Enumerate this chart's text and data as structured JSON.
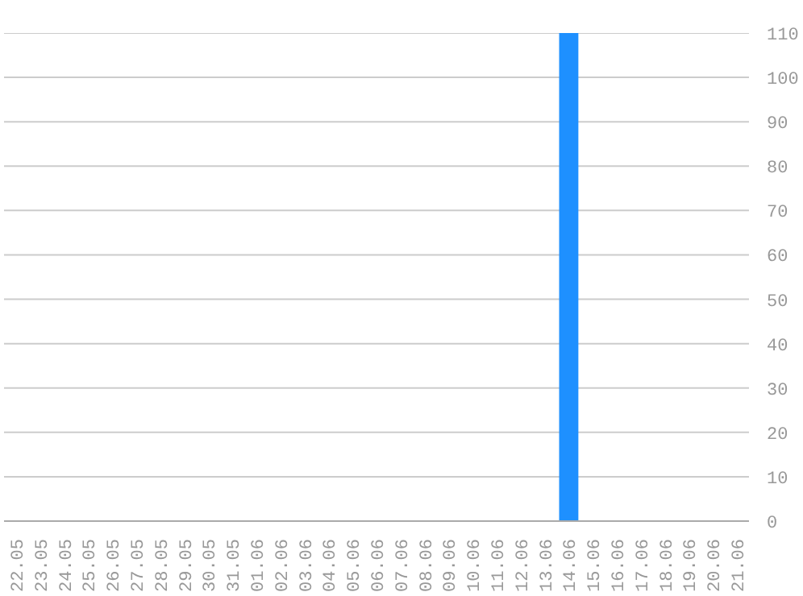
{
  "chart_data": {
    "type": "bar",
    "categories": [
      "22.05",
      "23.05",
      "24.05",
      "25.05",
      "26.05",
      "27.05",
      "28.05",
      "29.05",
      "30.05",
      "31.05",
      "01.06",
      "02.06",
      "03.06",
      "04.06",
      "05.06",
      "06.06",
      "07.06",
      "08.06",
      "09.06",
      "10.06",
      "11.06",
      "12.06",
      "13.06",
      "14.06",
      "15.06",
      "16.06",
      "17.06",
      "18.06",
      "19.06",
      "20.06",
      "21.06"
    ],
    "values": [
      0,
      0,
      0,
      0,
      0,
      0,
      0,
      0,
      0,
      0,
      0,
      0,
      0,
      0,
      0,
      0,
      0,
      0,
      0,
      0,
      0,
      0,
      0,
      110,
      0,
      0,
      0,
      0,
      0,
      0,
      0
    ],
    "color": "#1e90ff",
    "ylim": [
      0,
      110
    ],
    "yticks": [
      0,
      10,
      20,
      30,
      40,
      50,
      60,
      70,
      80,
      90,
      100,
      110
    ],
    "grid": "y"
  }
}
